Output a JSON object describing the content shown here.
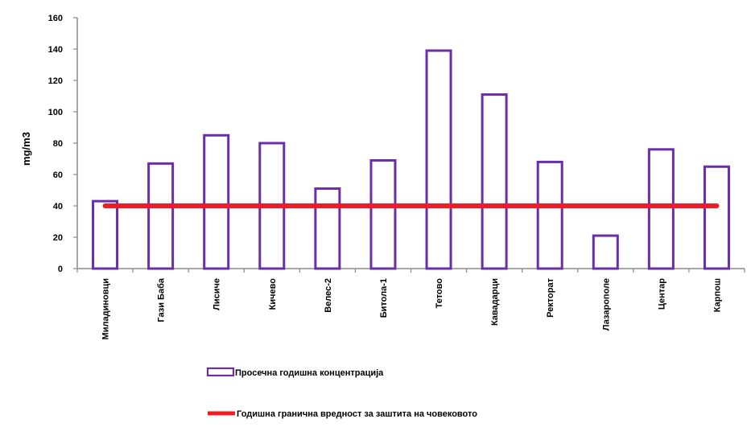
{
  "chart_data": {
    "type": "bar",
    "ylabel": "mg/m3",
    "ylim": [
      0,
      160
    ],
    "yticks": [
      0,
      20,
      40,
      60,
      80,
      100,
      120,
      140,
      160
    ],
    "grid": false,
    "categories": [
      "Миладиновци",
      "Гази Баба",
      "Лисиче",
      "Кичево",
      "Велес-2",
      "Битола-1",
      "Тетово",
      "Кавадарци",
      "Ректорат",
      "Лазарополе",
      "Центар",
      "Карпош"
    ],
    "series": [
      {
        "name": "Просечна годишна концентрација",
        "kind": "bar",
        "color": "#6a2ea8",
        "fill": "#ffffff",
        "values": [
          43,
          67,
          85,
          80,
          51,
          69,
          139,
          111,
          68,
          21,
          76,
          65
        ]
      },
      {
        "name": "Годишна гранична вредност за заштита на човековото",
        "kind": "line",
        "color": "#ee1c25",
        "values": [
          40,
          40,
          40,
          40,
          40,
          40,
          40,
          40,
          40,
          40,
          40,
          40
        ]
      }
    ],
    "legend_position": "bottom"
  }
}
